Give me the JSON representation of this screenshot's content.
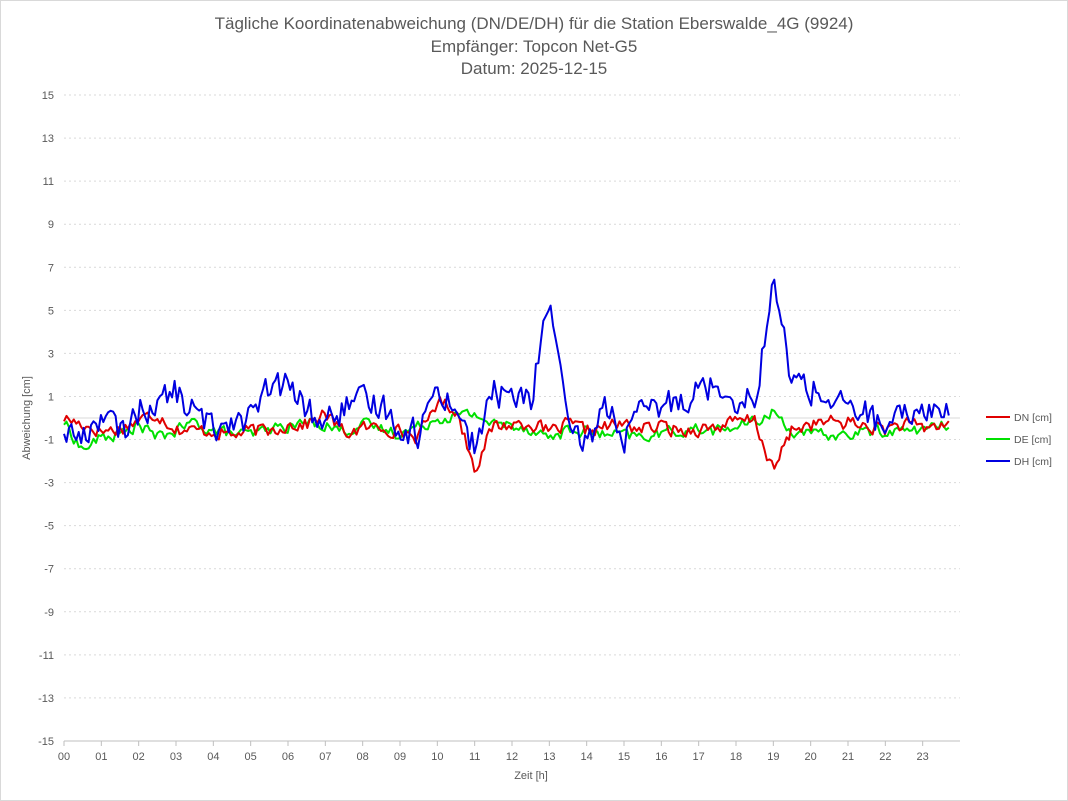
{
  "chart_data": {
    "type": "line",
    "title": [
      "Tägliche Koordinatenabweichung (DN/DE/DH) für die Station Eberswalde_4G (9924)",
      "Empfänger: Topcon Net-G5",
      "Datum: 2025-12-15"
    ],
    "xlabel": "Zeit [h]",
    "ylabel": "Abweichung [cm]",
    "xlim": [
      0,
      24
    ],
    "ylim": [
      -15,
      15
    ],
    "x_ticks": [
      "00",
      "01",
      "02",
      "03",
      "04",
      "05",
      "06",
      "07",
      "08",
      "09",
      "10",
      "11",
      "12",
      "13",
      "14",
      "15",
      "16",
      "17",
      "18",
      "19",
      "20",
      "21",
      "22",
      "23"
    ],
    "y_ticks": [
      "15",
      "13",
      "11",
      "9",
      "7",
      "5",
      "3",
      "1",
      "-1",
      "-3",
      "-5",
      "-7",
      "-9",
      "-11",
      "-13",
      "-15"
    ],
    "grid": true,
    "legend_position": "right",
    "x": [
      0,
      0.5,
      1,
      1.5,
      2,
      2.5,
      3,
      3.5,
      4,
      4.5,
      5,
      5.5,
      6,
      6.5,
      7,
      7.5,
      8,
      8.5,
      9,
      9.5,
      10,
      10.5,
      11,
      11.5,
      12,
      12.5,
      13,
      13.5,
      14,
      14.5,
      15,
      15.5,
      16,
      16.5,
      17,
      17.5,
      18,
      18.5,
      19,
      19.5,
      20,
      20.5,
      21,
      21.5,
      22,
      22.5,
      23,
      23.5
    ],
    "series": [
      {
        "name": "DN [cm]",
        "color": "#e00000",
        "values": [
          0.0,
          -0.3,
          -0.6,
          -0.5,
          -0.1,
          0.2,
          -0.5,
          -0.6,
          -0.6,
          -0.8,
          -0.6,
          -0.6,
          -0.3,
          -0.3,
          0.2,
          -0.7,
          -0.5,
          -0.4,
          -0.6,
          -0.9,
          0.8,
          0.4,
          -2.3,
          -0.4,
          -0.3,
          -0.2,
          -0.7,
          -0.3,
          -0.6,
          -0.4,
          -0.3,
          -0.5,
          -0.4,
          -0.6,
          -0.5,
          -0.4,
          -0.2,
          -0.1,
          -2.5,
          -0.5,
          -0.3,
          -0.2,
          -0.2,
          -0.4,
          -0.5,
          -0.3,
          -0.5,
          -0.3
        ]
      },
      {
        "name": "DE [cm]",
        "color": "#00e000",
        "values": [
          -0.2,
          -1.5,
          -0.9,
          -0.8,
          -0.3,
          -0.9,
          -0.6,
          -0.2,
          -0.6,
          -0.7,
          -0.8,
          -0.5,
          -0.4,
          -0.2,
          -0.3,
          -0.6,
          -0.3,
          -0.5,
          -0.7,
          -0.4,
          0.0,
          0.1,
          0.2,
          -0.3,
          -0.3,
          -0.5,
          -0.9,
          -0.6,
          -0.6,
          -0.8,
          -0.8,
          -0.9,
          -0.7,
          -0.6,
          -0.5,
          -0.6,
          -0.4,
          -0.2,
          0.3,
          -0.6,
          -0.8,
          -0.8,
          -0.8,
          -0.6,
          -0.6,
          -0.6,
          -0.5,
          -0.4
        ]
      },
      {
        "name": "DH [cm]",
        "color": "#0000e0",
        "values": [
          -0.5,
          -1.0,
          0.3,
          -0.8,
          0.4,
          0.7,
          1.2,
          0.2,
          -0.5,
          0.1,
          0.0,
          1.3,
          1.5,
          0.4,
          -0.3,
          0.5,
          0.6,
          0.7,
          -0.4,
          -0.7,
          1.5,
          0.5,
          -1.4,
          1.2,
          1.0,
          0.8,
          5.7,
          -0.8,
          -1.2,
          0.7,
          -0.9,
          0.2,
          0.5,
          0.9,
          1.4,
          1.6,
          1.0,
          0.9,
          6.2,
          1.8,
          1.4,
          0.9,
          0.3,
          0.3,
          -0.7,
          0.0,
          0.6,
          0.3
        ]
      }
    ]
  }
}
